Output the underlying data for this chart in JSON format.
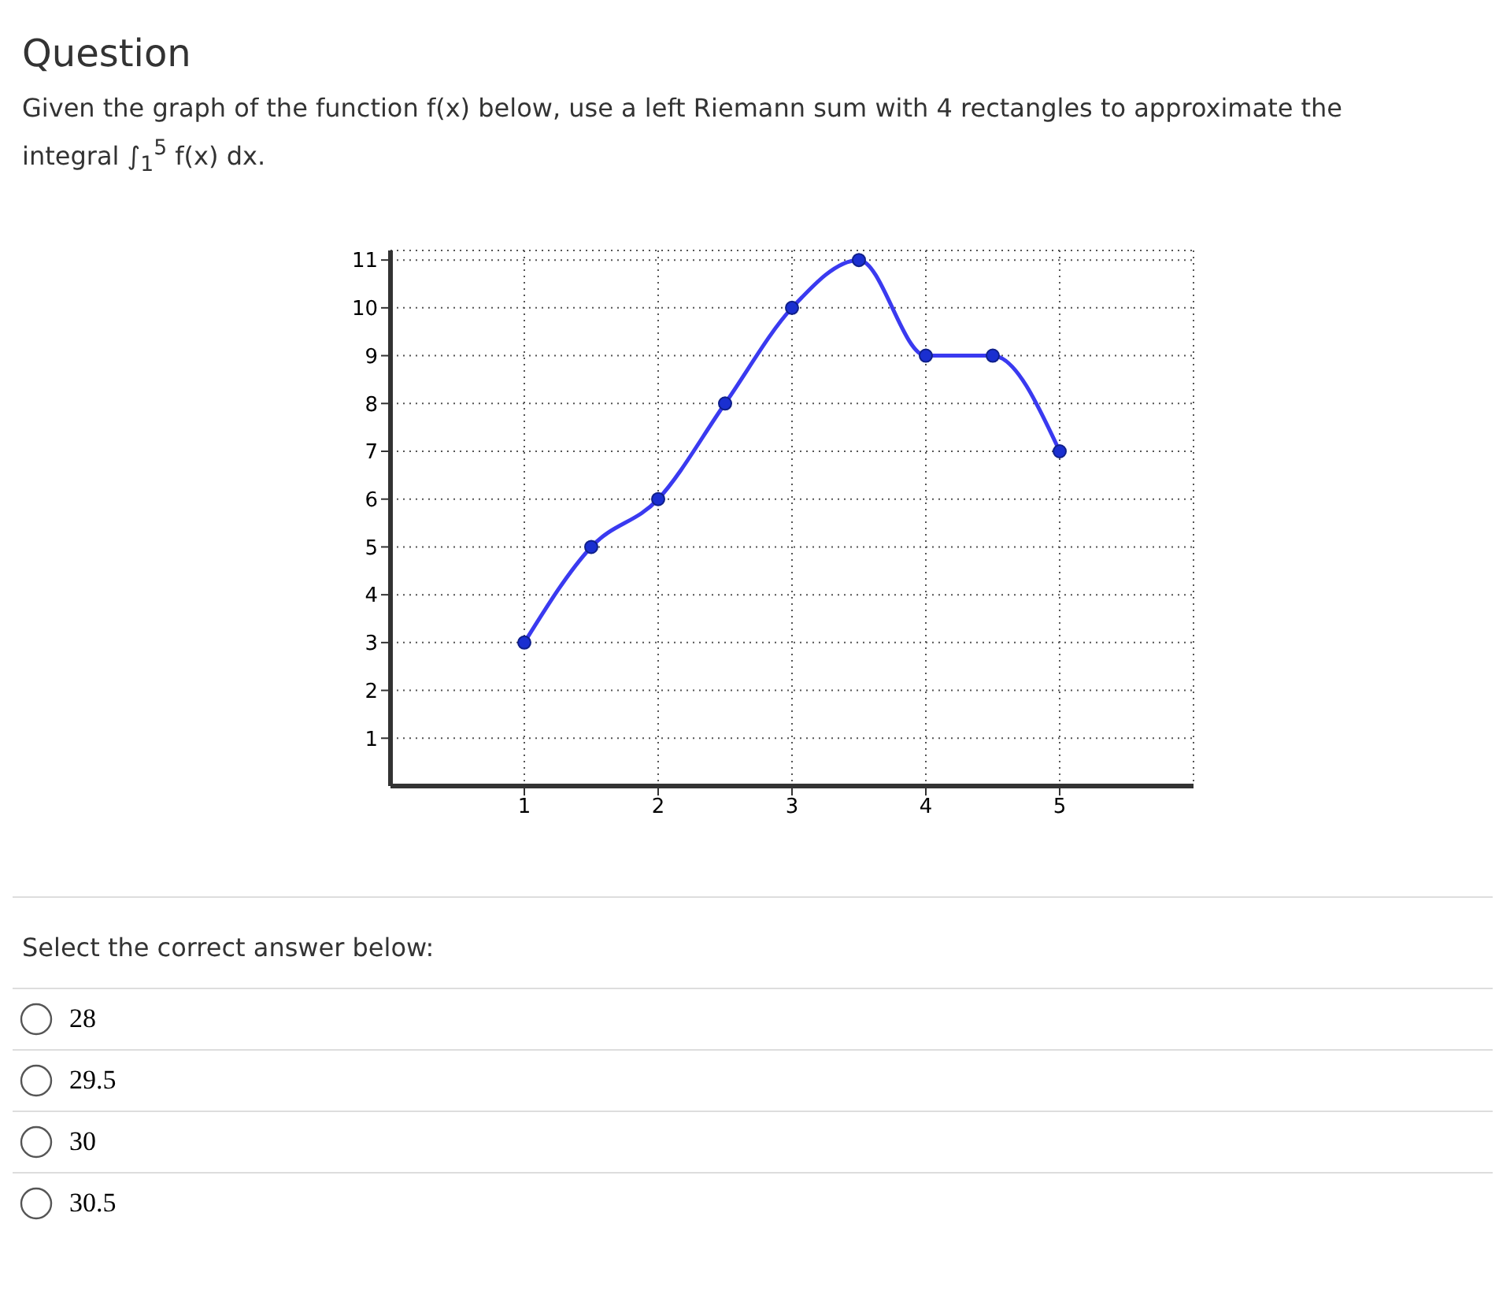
{
  "chart_data": {
    "type": "line",
    "title": "Question",
    "subtitle": "Given the graph of the function f(x) below, use a left Riemann sum with 4 rectangles to approximate the integral ∫$_{1}$$^{5}$ f(x) dx.",
    "annotations": [
      "Select the correct answer below:",
      "28",
      "29.5",
      "30",
      "30.5"
    ],
    "x": [
      1,
      1.5,
      2,
      2.5,
      3,
      3.5,
      4,
      4.5,
      5
    ],
    "series": [
      {
        "color": "#3a3af0",
        "values": [
          3,
          5,
          6,
          8,
          10,
          11,
          9,
          9,
          7
        ]
      }
    ],
    "xlim": [
      0,
      6
    ],
    "ylim": [
      0,
      11.2
    ],
    "xticks": [
      1,
      2,
      3,
      4,
      5
    ],
    "yticks": [
      1,
      2,
      3,
      4,
      5,
      6,
      7,
      8,
      9,
      10,
      11
    ],
    "grid": true,
    "marker": "circle",
    "line_style": "solid"
  }
}
